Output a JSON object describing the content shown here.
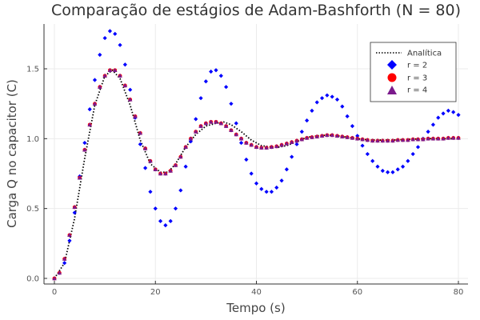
{
  "chart_data": {
    "type": "scatter",
    "title": "Comparação de estágios de Adam-Bashforth (N = 80)",
    "xlabel": "Tempo (s)",
    "ylabel": "Carga Q no capacitor (C)",
    "xlim": [
      0,
      80
    ],
    "ylim": [
      0,
      1.8
    ],
    "xticks": [
      0,
      20,
      40,
      60,
      80
    ],
    "yticks": [
      0.0,
      0.5,
      1.0,
      1.5
    ],
    "xtick_labels": [
      "0",
      "20",
      "40",
      "60",
      "80"
    ],
    "ytick_labels": [
      "0.0",
      "0.5",
      "1.0",
      "1.5"
    ],
    "grid": true,
    "legend_position": "top-right",
    "series": [
      {
        "name": "Analítica",
        "kind": "line",
        "style": "dotted",
        "color": "#000000",
        "x": [
          0,
          2,
          4,
          6,
          8,
          10,
          11.5,
          13,
          15,
          17,
          19,
          21,
          22.5,
          24,
          26,
          28,
          30,
          32,
          33.5,
          35,
          37,
          39,
          41,
          43,
          44.5,
          46,
          48,
          50,
          52,
          54,
          55.5,
          57,
          59,
          61,
          63,
          65,
          67,
          70,
          73,
          76,
          80
        ],
        "y": [
          0,
          0.11,
          0.43,
          0.86,
          1.24,
          1.45,
          1.49,
          1.43,
          1.24,
          0.99,
          0.82,
          0.76,
          0.76,
          0.82,
          0.94,
          1.03,
          1.09,
          1.11,
          1.12,
          1.1,
          1.05,
          0.99,
          0.95,
          0.94,
          0.94,
          0.95,
          0.98,
          1.01,
          1.02,
          1.025,
          1.025,
          1.015,
          1.005,
          0.995,
          0.99,
          0.99,
          0.99,
          0.995,
          1.0,
          1.0,
          1.0
        ]
      },
      {
        "name": "r = 2",
        "kind": "scatter",
        "marker": "diamond",
        "color": "#0000ff",
        "x": [
          0,
          1,
          2,
          3,
          4,
          5,
          6,
          7,
          8,
          9,
          10,
          11,
          12,
          13,
          14,
          15,
          16,
          17,
          18,
          19,
          20,
          21,
          22,
          23,
          24,
          25,
          26,
          27,
          28,
          29,
          30,
          31,
          32,
          33,
          34,
          35,
          36,
          37,
          38,
          39,
          40,
          41,
          42,
          43,
          44,
          45,
          46,
          47,
          48,
          49,
          50,
          51,
          52,
          53,
          54,
          55,
          56,
          57,
          58,
          59,
          60,
          61,
          62,
          63,
          64,
          65,
          66,
          67,
          68,
          69,
          70,
          71,
          72,
          73,
          74,
          75,
          76,
          77,
          78,
          79,
          80
        ],
        "y": [
          0.0,
          0.04,
          0.11,
          0.27,
          0.47,
          0.73,
          0.97,
          1.21,
          1.42,
          1.6,
          1.72,
          1.77,
          1.75,
          1.67,
          1.53,
          1.35,
          1.15,
          0.96,
          0.79,
          0.62,
          0.5,
          0.41,
          0.38,
          0.41,
          0.5,
          0.63,
          0.8,
          0.98,
          1.14,
          1.29,
          1.41,
          1.48,
          1.49,
          1.45,
          1.37,
          1.25,
          1.11,
          0.97,
          0.85,
          0.75,
          0.68,
          0.64,
          0.62,
          0.62,
          0.65,
          0.7,
          0.78,
          0.87,
          0.96,
          1.05,
          1.13,
          1.2,
          1.26,
          1.29,
          1.31,
          1.3,
          1.28,
          1.23,
          1.16,
          1.09,
          1.02,
          0.95,
          0.89,
          0.84,
          0.8,
          0.77,
          0.76,
          0.76,
          0.78,
          0.8,
          0.84,
          0.89,
          0.94,
          1.0,
          1.05,
          1.1,
          1.15,
          1.18,
          1.2,
          1.19,
          1.17
        ]
      },
      {
        "name": "r = 3",
        "kind": "scatter",
        "marker": "circle",
        "color": "#ff0000",
        "x": [
          0,
          1,
          2,
          3,
          4,
          5,
          6,
          7,
          8,
          9,
          10,
          11,
          12,
          13,
          14,
          15,
          16,
          17,
          18,
          19,
          20,
          21,
          22,
          23,
          24,
          25,
          26,
          27,
          28,
          29,
          30,
          31,
          32,
          33,
          34,
          35,
          36,
          37,
          38,
          39,
          40,
          41,
          42,
          43,
          44,
          45,
          46,
          47,
          48,
          49,
          50,
          51,
          52,
          53,
          54,
          55,
          56,
          57,
          58,
          59,
          60,
          61,
          62,
          63,
          64,
          65,
          66,
          67,
          68,
          69,
          70,
          71,
          72,
          73,
          74,
          75,
          76,
          77,
          78,
          79,
          80
        ],
        "y": [
          0.0,
          0.04,
          0.14,
          0.31,
          0.51,
          0.72,
          0.92,
          1.1,
          1.25,
          1.37,
          1.45,
          1.49,
          1.49,
          1.45,
          1.38,
          1.28,
          1.16,
          1.04,
          0.93,
          0.84,
          0.78,
          0.75,
          0.75,
          0.77,
          0.81,
          0.87,
          0.94,
          1.0,
          1.05,
          1.09,
          1.11,
          1.12,
          1.12,
          1.11,
          1.09,
          1.06,
          1.03,
          1.0,
          0.97,
          0.955,
          0.94,
          0.935,
          0.935,
          0.94,
          0.945,
          0.955,
          0.965,
          0.975,
          0.985,
          0.995,
          1.005,
          1.01,
          1.015,
          1.02,
          1.025,
          1.025,
          1.02,
          1.015,
          1.01,
          1.005,
          1.0,
          0.995,
          0.99,
          0.985,
          0.985,
          0.985,
          0.985,
          0.985,
          0.99,
          0.99,
          0.99,
          0.995,
          0.995,
          0.995,
          1.0,
          1.0,
          1.0,
          1.0,
          1.005,
          1.005,
          1.005
        ]
      },
      {
        "name": "r = 4",
        "kind": "scatter",
        "marker": "triangle",
        "color": "#7b1a8c",
        "x": [
          0,
          1,
          2,
          3,
          4,
          5,
          6,
          7,
          8,
          9,
          10,
          11,
          12,
          13,
          14,
          15,
          16,
          17,
          18,
          19,
          20,
          21,
          22,
          23,
          24,
          25,
          26,
          27,
          28,
          29,
          30,
          31,
          32,
          33,
          34,
          35,
          36,
          37,
          38,
          39,
          40,
          41,
          42,
          43,
          44,
          45,
          46,
          47,
          48,
          49,
          50,
          51,
          52,
          53,
          54,
          55,
          56,
          57,
          58,
          59,
          60,
          61,
          62,
          63,
          64,
          65,
          66,
          67,
          68,
          69,
          70,
          71,
          72,
          73,
          74,
          75,
          76,
          77,
          78,
          79,
          80
        ],
        "y": [
          0.0,
          0.04,
          0.14,
          0.31,
          0.51,
          0.72,
          0.92,
          1.1,
          1.25,
          1.37,
          1.45,
          1.49,
          1.49,
          1.45,
          1.38,
          1.28,
          1.16,
          1.04,
          0.93,
          0.84,
          0.78,
          0.75,
          0.75,
          0.77,
          0.81,
          0.87,
          0.94,
          1.0,
          1.05,
          1.09,
          1.11,
          1.12,
          1.12,
          1.11,
          1.09,
          1.06,
          1.03,
          1.0,
          0.97,
          0.955,
          0.94,
          0.935,
          0.935,
          0.94,
          0.945,
          0.955,
          0.965,
          0.975,
          0.985,
          0.995,
          1.005,
          1.01,
          1.015,
          1.02,
          1.025,
          1.025,
          1.02,
          1.015,
          1.01,
          1.005,
          1.0,
          0.995,
          0.99,
          0.985,
          0.985,
          0.985,
          0.985,
          0.985,
          0.99,
          0.99,
          0.99,
          0.995,
          0.995,
          0.995,
          1.0,
          1.0,
          1.0,
          1.0,
          1.005,
          1.005,
          1.005
        ]
      }
    ]
  }
}
